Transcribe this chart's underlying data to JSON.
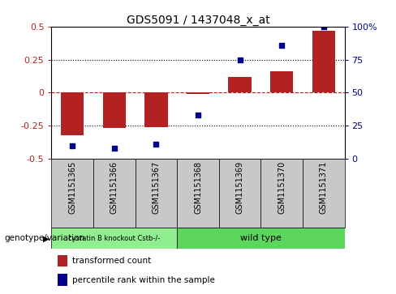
{
  "title": "GDS5091 / 1437048_x_at",
  "categories": [
    "GSM1151365",
    "GSM1151366",
    "GSM1151367",
    "GSM1151368",
    "GSM1151369",
    "GSM1151370",
    "GSM1151371"
  ],
  "bar_values": [
    -0.32,
    -0.27,
    -0.26,
    -0.01,
    0.12,
    0.16,
    0.47
  ],
  "dot_values": [
    10,
    8,
    11,
    33,
    75,
    86,
    100
  ],
  "bar_color": "#b22222",
  "dot_color": "#00008b",
  "ylim_left": [
    -0.5,
    0.5
  ],
  "ylim_right": [
    0,
    100
  ],
  "yticks_left": [
    -0.5,
    -0.25,
    0,
    0.25,
    0.5
  ],
  "yticks_right": [
    0,
    25,
    50,
    75,
    100
  ],
  "group1_label": "cystatin B knockout Cstb-/-",
  "group2_label": "wild type",
  "group1_indices": [
    0,
    1,
    2
  ],
  "group2_indices": [
    3,
    4,
    5,
    6
  ],
  "group1_color": "#90ee90",
  "group2_color": "#5cd65c",
  "group_row_label": "genotype/variation",
  "legend1_label": "transformed count",
  "legend2_label": "percentile rank within the sample",
  "bg_color": "#ffffff",
  "tick_area_color": "#c8c8c8",
  "font_size": 8,
  "title_font_size": 10
}
